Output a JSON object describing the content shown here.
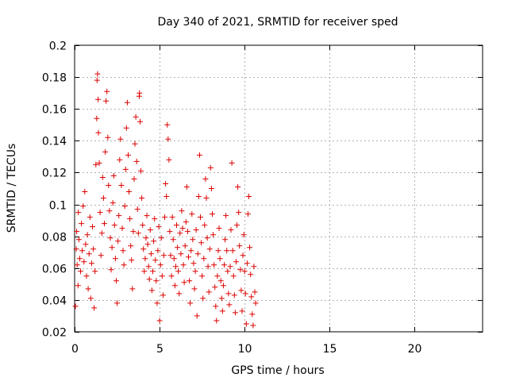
{
  "chart_data": {
    "type": "scatter",
    "title": "Day 340 of 2021, SRMTID for receiver sped",
    "xlabel": "GPS time / hours",
    "ylabel": "SRMTID / TECUs",
    "xlim": [
      0,
      24
    ],
    "ylim": [
      0.02,
      0.2
    ],
    "xticks": [
      0,
      5,
      10,
      15,
      20
    ],
    "xtick_labels": [
      "0",
      "5",
      "10",
      "15",
      "20"
    ],
    "yticks": [
      0.02,
      0.04,
      0.06,
      0.08,
      0.1,
      0.12,
      0.14,
      0.16,
      0.18,
      0.2
    ],
    "ytick_labels": [
      "0.02",
      "0.04",
      "0.06",
      "0.08",
      "0.1",
      "0.12",
      "0.14",
      "0.16",
      "0.18",
      "0.2"
    ],
    "grid": true,
    "marker": "+",
    "marker_color": "#dd0000",
    "series": [
      {
        "name": "SRMTID",
        "points": [
          [
            0.05,
            0.036
          ],
          [
            0.1,
            0.072
          ],
          [
            0.12,
            0.083
          ],
          [
            0.15,
            0.062
          ],
          [
            0.2,
            0.049
          ],
          [
            0.22,
            0.095
          ],
          [
            0.25,
            0.078
          ],
          [
            0.3,
            0.066
          ],
          [
            0.35,
            0.058
          ],
          [
            0.4,
            0.088
          ],
          [
            0.45,
            0.071
          ],
          [
            0.5,
            0.099
          ],
          [
            0.55,
            0.064
          ],
          [
            0.6,
            0.108
          ],
          [
            0.65,
            0.075
          ],
          [
            0.7,
            0.055
          ],
          [
            0.75,
            0.081
          ],
          [
            0.8,
            0.047
          ],
          [
            0.85,
            0.069
          ],
          [
            0.9,
            0.092
          ],
          [
            0.95,
            0.041
          ],
          [
            1.0,
            0.063
          ],
          [
            1.05,
            0.086
          ],
          [
            1.1,
            0.072
          ],
          [
            1.15,
            0.035
          ],
          [
            1.2,
            0.058
          ],
          [
            1.25,
            0.125
          ],
          [
            1.3,
            0.154
          ],
          [
            1.32,
            0.178
          ],
          [
            1.35,
            0.182
          ],
          [
            1.38,
            0.166
          ],
          [
            1.4,
            0.145
          ],
          [
            1.45,
            0.126
          ],
          [
            1.5,
            0.095
          ],
          [
            1.55,
            0.068
          ],
          [
            1.6,
            0.082
          ],
          [
            1.65,
            0.117
          ],
          [
            1.7,
            0.104
          ],
          [
            1.75,
            0.088
          ],
          [
            1.8,
            0.133
          ],
          [
            1.85,
            0.165
          ],
          [
            1.9,
            0.171
          ],
          [
            1.95,
            0.142
          ],
          [
            2.0,
            0.112
          ],
          [
            2.05,
            0.096
          ],
          [
            2.1,
            0.079
          ],
          [
            2.15,
            0.059
          ],
          [
            2.2,
            0.073
          ],
          [
            2.25,
            0.101
          ],
          [
            2.3,
            0.118
          ],
          [
            2.35,
            0.087
          ],
          [
            2.4,
            0.066
          ],
          [
            2.45,
            0.052
          ],
          [
            2.5,
            0.038
          ],
          [
            2.55,
            0.077
          ],
          [
            2.6,
            0.093
          ],
          [
            2.65,
            0.128
          ],
          [
            2.7,
            0.141
          ],
          [
            2.75,
            0.112
          ],
          [
            2.8,
            0.085
          ],
          [
            2.85,
            0.071
          ],
          [
            2.9,
            0.062
          ],
          [
            2.95,
            0.099
          ],
          [
            3.0,
            0.122
          ],
          [
            3.05,
            0.148
          ],
          [
            3.1,
            0.164
          ],
          [
            3.15,
            0.131
          ],
          [
            3.2,
            0.108
          ],
          [
            3.25,
            0.091
          ],
          [
            3.3,
            0.074
          ],
          [
            3.35,
            0.065
          ],
          [
            3.4,
            0.047
          ],
          [
            3.45,
            0.083
          ],
          [
            3.5,
            0.116
          ],
          [
            3.55,
            0.138
          ],
          [
            3.6,
            0.155
          ],
          [
            3.65,
            0.127
          ],
          [
            3.7,
            0.097
          ],
          [
            3.75,
            0.082
          ],
          [
            3.8,
            0.168
          ],
          [
            3.82,
            0.17
          ],
          [
            3.85,
            0.152
          ],
          [
            3.9,
            0.121
          ],
          [
            3.95,
            0.104
          ],
          [
            4.0,
            0.087
          ],
          [
            4.05,
            0.072
          ],
          [
            4.1,
            0.058
          ],
          [
            4.15,
            0.066
          ],
          [
            4.2,
            0.079
          ],
          [
            4.25,
            0.093
          ],
          [
            4.3,
            0.075
          ],
          [
            4.35,
            0.061
          ],
          [
            4.4,
            0.053
          ],
          [
            4.45,
            0.084
          ],
          [
            4.5,
            0.069
          ],
          [
            4.55,
            0.046
          ],
          [
            4.6,
            0.058
          ],
          [
            4.65,
            0.077
          ],
          [
            4.7,
            0.091
          ],
          [
            4.75,
            0.065
          ],
          [
            4.8,
            0.052
          ],
          [
            4.85,
            0.038
          ],
          [
            4.9,
            0.071
          ],
          [
            4.95,
            0.086
          ],
          [
            5.0,
            0.027
          ],
          [
            5.05,
            0.062
          ],
          [
            5.1,
            0.079
          ],
          [
            5.15,
            0.055
          ],
          [
            5.2,
            0.043
          ],
          [
            5.25,
            0.068
          ],
          [
            5.3,
            0.092
          ],
          [
            5.35,
            0.113
          ],
          [
            5.4,
            0.105
          ],
          [
            5.45,
            0.15
          ],
          [
            5.5,
            0.141
          ],
          [
            5.55,
            0.128
          ],
          [
            5.6,
            0.083
          ],
          [
            5.65,
            0.068
          ],
          [
            5.7,
            0.055
          ],
          [
            5.75,
            0.092
          ],
          [
            5.8,
            0.078
          ],
          [
            5.85,
            0.066
          ],
          [
            5.9,
            0.049
          ],
          [
            5.95,
            0.061
          ],
          [
            6.0,
            0.087
          ],
          [
            6.05,
            0.073
          ],
          [
            6.1,
            0.058
          ],
          [
            6.15,
            0.044
          ],
          [
            6.2,
            0.082
          ],
          [
            6.25,
            0.069
          ],
          [
            6.3,
            0.096
          ],
          [
            6.35,
            0.085
          ],
          [
            6.4,
            0.062
          ],
          [
            6.45,
            0.051
          ],
          [
            6.5,
            0.074
          ],
          [
            6.55,
            0.089
          ],
          [
            6.6,
            0.111
          ],
          [
            6.65,
            0.083
          ],
          [
            6.7,
            0.067
          ],
          [
            6.75,
            0.052
          ],
          [
            6.8,
            0.038
          ],
          [
            6.85,
            0.071
          ],
          [
            6.9,
            0.094
          ],
          [
            6.95,
            0.078
          ],
          [
            7.0,
            0.063
          ],
          [
            7.05,
            0.047
          ],
          [
            7.1,
            0.058
          ],
          [
            7.15,
            0.084
          ],
          [
            7.2,
            0.03
          ],
          [
            7.25,
            0.069
          ],
          [
            7.3,
            0.105
          ],
          [
            7.35,
            0.131
          ],
          [
            7.4,
            0.092
          ],
          [
            7.45,
            0.076
          ],
          [
            7.5,
            0.055
          ],
          [
            7.55,
            0.041
          ],
          [
            7.6,
            0.066
          ],
          [
            7.65,
            0.087
          ],
          [
            7.7,
            0.116
          ],
          [
            7.75,
            0.104
          ],
          [
            7.8,
            0.079
          ],
          [
            7.85,
            0.061
          ],
          [
            7.9,
            0.045
          ],
          [
            7.95,
            0.072
          ],
          [
            8.0,
            0.123
          ],
          [
            8.05,
            0.11
          ],
          [
            8.1,
            0.094
          ],
          [
            8.15,
            0.081
          ],
          [
            8.2,
            0.062
          ],
          [
            8.25,
            0.048
          ],
          [
            8.3,
            0.036
          ],
          [
            8.35,
            0.027
          ],
          [
            8.4,
            0.055
          ],
          [
            8.45,
            0.071
          ],
          [
            8.5,
            0.085
          ],
          [
            8.55,
            0.066
          ],
          [
            8.6,
            0.052
          ],
          [
            8.65,
            0.041
          ],
          [
            8.7,
            0.033
          ],
          [
            8.75,
            0.049
          ],
          [
            8.8,
            0.062
          ],
          [
            8.85,
            0.078
          ],
          [
            8.9,
            0.093
          ],
          [
            8.95,
            0.071
          ],
          [
            9.0,
            0.058
          ],
          [
            9.05,
            0.044
          ],
          [
            9.1,
            0.037
          ],
          [
            9.15,
            0.061
          ],
          [
            9.2,
            0.084
          ],
          [
            9.25,
            0.126
          ],
          [
            9.3,
            0.071
          ],
          [
            9.35,
            0.055
          ],
          [
            9.4,
            0.043
          ],
          [
            9.45,
            0.032
          ],
          [
            9.5,
            0.064
          ],
          [
            9.55,
            0.087
          ],
          [
            9.6,
            0.111
          ],
          [
            9.65,
            0.095
          ],
          [
            9.7,
            0.074
          ],
          [
            9.75,
            0.059
          ],
          [
            9.8,
            0.046
          ],
          [
            9.85,
            0.033
          ],
          [
            9.9,
            0.068
          ],
          [
            9.95,
            0.081
          ],
          [
            10.0,
            0.058
          ],
          [
            10.05,
            0.044
          ],
          [
            10.1,
            0.025
          ],
          [
            10.15,
            0.063
          ],
          [
            10.2,
            0.094
          ],
          [
            10.25,
            0.105
          ],
          [
            10.3,
            0.073
          ],
          [
            10.35,
            0.056
          ],
          [
            10.4,
            0.042
          ],
          [
            10.45,
            0.031
          ],
          [
            10.5,
            0.024
          ],
          [
            10.55,
            0.061
          ],
          [
            10.6,
            0.045
          ],
          [
            10.65,
            0.038
          ]
        ]
      }
    ]
  }
}
